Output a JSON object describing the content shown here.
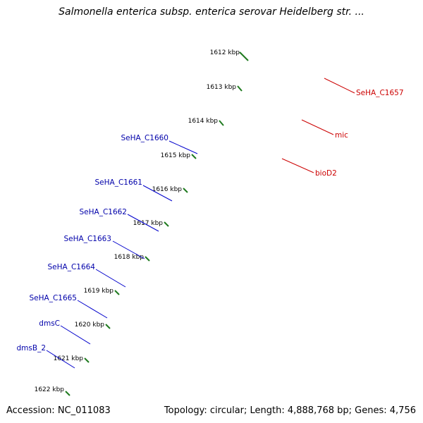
{
  "title": "Salmonella enterica subsp. enterica serovar Heidelberg str. ...",
  "footer": {
    "accession": "Accession: NC_011083",
    "topology": "Topology: circular; Length: 4,888,768 bp; Genes: 4,756"
  },
  "colors": {
    "backbone": "#8a8a8a",
    "tick_dots": "#1f8a1f",
    "forward_cds": "#0000ee",
    "reverse_cds": "#ee0000",
    "blue_label": "#0000aa",
    "red_label": "#cc0000",
    "cog_purple": "#3f3c8a",
    "cog_steelblue": "#4a88b0",
    "cog_olive": "#6a9a2a",
    "cog_gray": "#c0c0c0",
    "cog_cyan": "#00e8e8",
    "cog_orange": "#ff9000"
  },
  "kbp_ticks": [
    "1612 kbp",
    "1613 kbp",
    "1614 kbp",
    "1615 kbp",
    "1616 kbp",
    "1617 kbp",
    "1618 kbp",
    "1619 kbp",
    "1620 kbp",
    "1621 kbp",
    "1622 kbp"
  ],
  "gene_labels_left": [
    "SeHA_C1660",
    "SeHA_C1661",
    "SeHA_C1662",
    "SeHA_C1663",
    "SeHA_C1664",
    "SeHA_C1665",
    "dmsC",
    "dmsB_2"
  ],
  "gene_labels_right": [
    "SeHA_C1657",
    "mic",
    "bioD2"
  ]
}
